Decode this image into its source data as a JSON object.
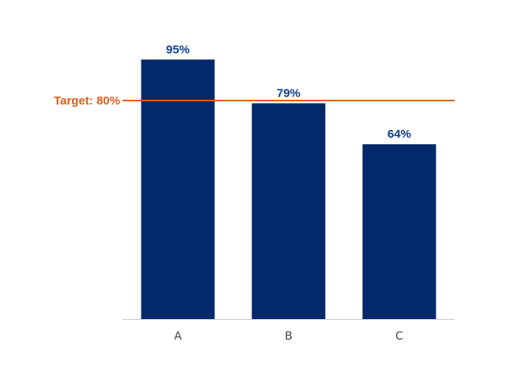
{
  "chart_data": {
    "type": "bar",
    "categories": [
      "A",
      "B",
      "C"
    ],
    "values": [
      95,
      79,
      64
    ],
    "value_labels": [
      "95%",
      "79%",
      "64%"
    ],
    "ylim": [
      0,
      100
    ],
    "grid": false,
    "target": {
      "value": 80,
      "label": "Target: 80%"
    },
    "colors": {
      "bar": "#03296b",
      "data_label": "#0d3f86",
      "target": "#d9601c",
      "axis": "#cccccc",
      "tick_label": "#444444"
    }
  }
}
